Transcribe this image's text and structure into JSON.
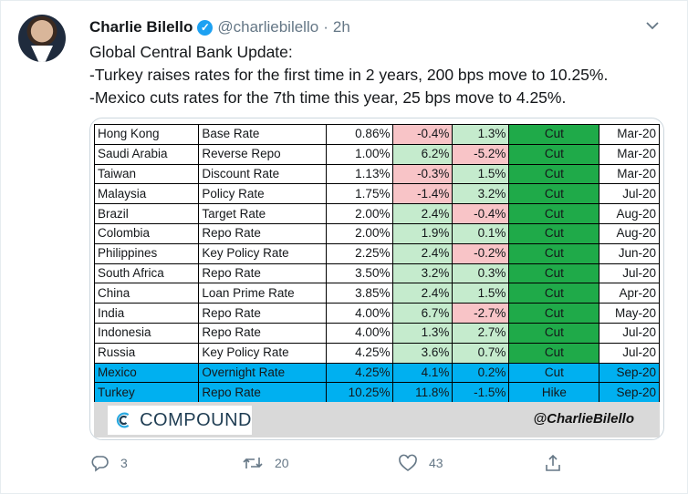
{
  "tweet": {
    "author_name": "Charlie Bilello",
    "handle": "@charliebilello",
    "separator": "·",
    "time": "2h",
    "lines": [
      "Global Central Bank Update:",
      "-Turkey raises rates for the first time in 2 years, 200 bps move to 10.25%.",
      "-Mexico cuts rates for the 7th time this year, 25 bps move to 4.25%."
    ]
  },
  "table": {
    "rows": [
      {
        "country": "Hong Kong",
        "rate_type": "Base Rate",
        "rate": "0.86%",
        "col4": "-0.4%",
        "col5": "1.3%",
        "action": "Cut",
        "date": "Mar-20"
      },
      {
        "country": "Saudi Arabia",
        "rate_type": "Reverse Repo",
        "rate": "1.00%",
        "col4": "6.2%",
        "col5": "-5.2%",
        "action": "Cut",
        "date": "Mar-20"
      },
      {
        "country": "Taiwan",
        "rate_type": "Discount Rate",
        "rate": "1.13%",
        "col4": "-0.3%",
        "col5": "1.5%",
        "action": "Cut",
        "date": "Mar-20"
      },
      {
        "country": "Malaysia",
        "rate_type": "Policy Rate",
        "rate": "1.75%",
        "col4": "-1.4%",
        "col5": "3.2%",
        "action": "Cut",
        "date": "Jul-20"
      },
      {
        "country": "Brazil",
        "rate_type": "Target Rate",
        "rate": "2.00%",
        "col4": "2.4%",
        "col5": "-0.4%",
        "action": "Cut",
        "date": "Aug-20"
      },
      {
        "country": "Colombia",
        "rate_type": "Repo Rate",
        "rate": "2.00%",
        "col4": "1.9%",
        "col5": "0.1%",
        "action": "Cut",
        "date": "Aug-20"
      },
      {
        "country": "Philippines",
        "rate_type": "Key Policy Rate",
        "rate": "2.25%",
        "col4": "2.4%",
        "col5": "-0.2%",
        "action": "Cut",
        "date": "Jun-20"
      },
      {
        "country": "South Africa",
        "rate_type": "Repo Rate",
        "rate": "3.50%",
        "col4": "3.2%",
        "col5": "0.3%",
        "action": "Cut",
        "date": "Jul-20"
      },
      {
        "country": "China",
        "rate_type": "Loan Prime Rate",
        "rate": "3.85%",
        "col4": "2.4%",
        "col5": "1.5%",
        "action": "Cut",
        "date": "Apr-20"
      },
      {
        "country": "India",
        "rate_type": "Repo Rate",
        "rate": "4.00%",
        "col4": "6.7%",
        "col5": "-2.7%",
        "action": "Cut",
        "date": "May-20"
      },
      {
        "country": "Indonesia",
        "rate_type": "Repo Rate",
        "rate": "4.00%",
        "col4": "1.3%",
        "col5": "2.7%",
        "action": "Cut",
        "date": "Jul-20"
      },
      {
        "country": "Russia",
        "rate_type": "Key Policy Rate",
        "rate": "4.25%",
        "col4": "3.6%",
        "col5": "0.7%",
        "action": "Cut",
        "date": "Jul-20"
      },
      {
        "country": "Mexico",
        "rate_type": "Overnight Rate",
        "rate": "4.25%",
        "col4": "4.1%",
        "col5": "0.2%",
        "action": "Cut",
        "date": "Sep-20"
      },
      {
        "country": "Turkey",
        "rate_type": "Repo Rate",
        "rate": "10.25%",
        "col4": "11.8%",
        "col5": "-1.5%",
        "action": "Hike",
        "date": "Sep-20"
      }
    ],
    "highlight_color": "#00b0f0",
    "negative_color": "#f8c4c7",
    "positive_color": "#c5ebcd",
    "cut_color": "#1faa49",
    "hike_color": "#f26863"
  },
  "image_footer": {
    "logo_text": "COMPOUND",
    "signature": "@CharlieBilello"
  },
  "actions": {
    "reply_count": "3",
    "retweet_count": "20",
    "like_count": "43"
  },
  "colors": {
    "verified": "#1da1f2",
    "secondary_text": "#657786"
  }
}
